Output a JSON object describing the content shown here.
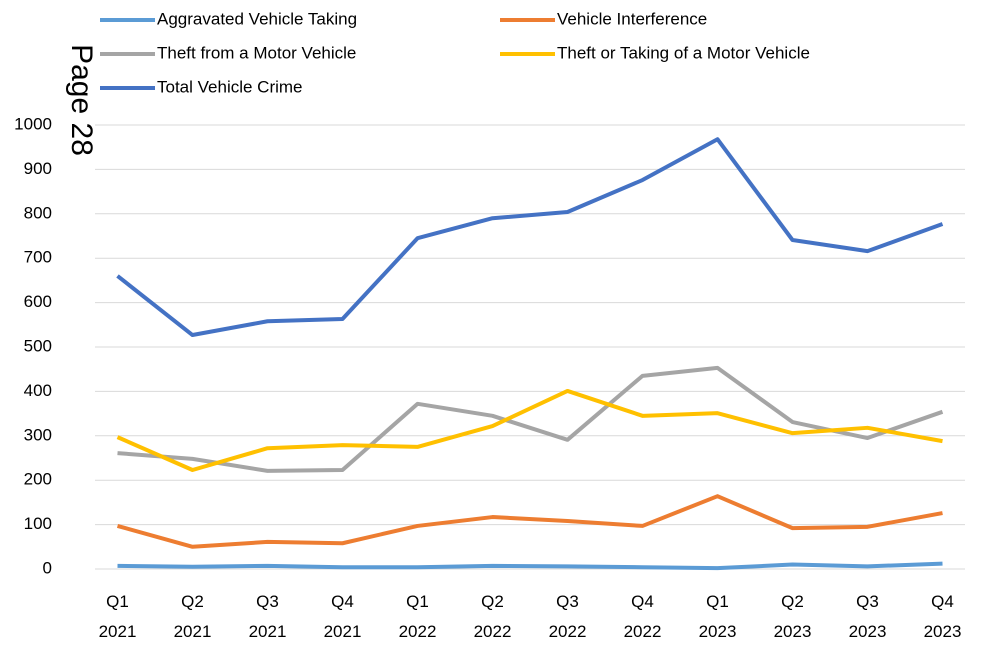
{
  "chart_data": {
    "type": "line",
    "annotation": "Page 28",
    "categories": [
      "Q1 2021",
      "Q2 2021",
      "Q3 2021",
      "Q4 2021",
      "Q1 2022",
      "Q2 2022",
      "Q3 2022",
      "Q4 2022",
      "Q1 2023",
      "Q2 2023",
      "Q3 2023",
      "Q4 2023"
    ],
    "series": [
      {
        "name": "Aggravated Vehicle Taking",
        "color": "#5b9bd5",
        "values": [
          7,
          5,
          7,
          4,
          4,
          7,
          6,
          4,
          2,
          10,
          6,
          12
        ]
      },
      {
        "name": "Vehicle Interference",
        "color": "#ed7d31",
        "values": [
          97,
          50,
          61,
          58,
          97,
          117,
          108,
          97,
          164,
          92,
          95,
          126
        ]
      },
      {
        "name": "Theft from a Motor Vehicle",
        "color": "#a5a5a5",
        "values": [
          261,
          248,
          221,
          223,
          372,
          345,
          291,
          435,
          453,
          331,
          295,
          354
        ]
      },
      {
        "name": "Theft or Taking of a Motor Vehicle",
        "color": "#ffc000",
        "values": [
          297,
          223,
          272,
          279,
          275,
          322,
          401,
          345,
          351,
          306,
          318,
          288
        ]
      },
      {
        "name": "Total Vehicle Crime",
        "color": "#4472c4",
        "values": [
          660,
          527,
          558,
          563,
          745,
          790,
          804,
          876,
          968,
          741,
          716,
          777
        ]
      }
    ],
    "ylim": [
      0,
      1000
    ],
    "yticks": [
      0,
      100,
      200,
      300,
      400,
      500,
      600,
      700,
      800,
      900,
      1000
    ],
    "grid": true,
    "legend": "top"
  }
}
